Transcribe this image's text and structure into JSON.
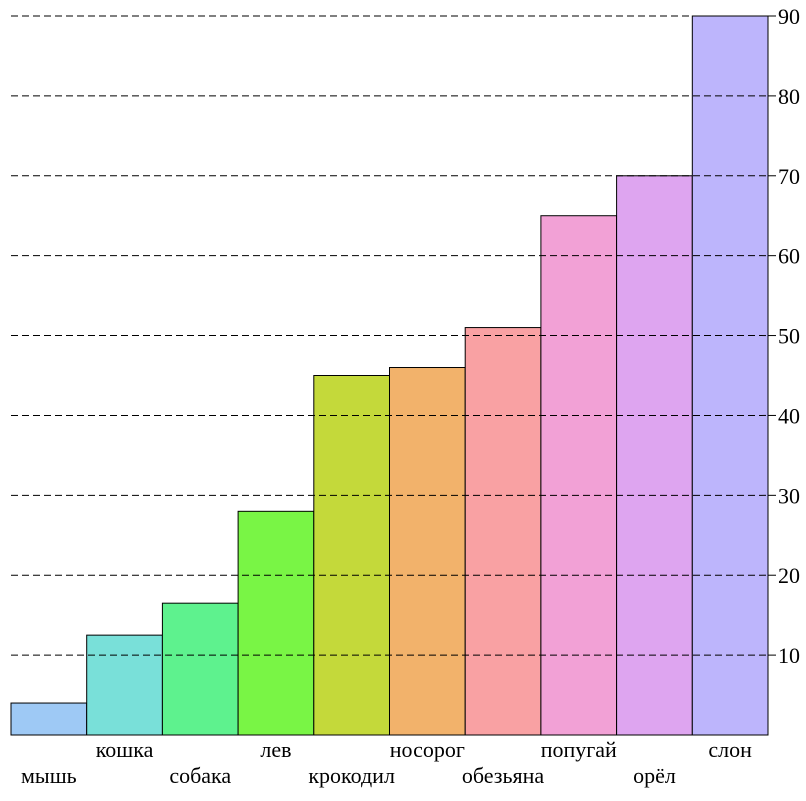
{
  "chart_data": {
    "type": "bar",
    "title": "",
    "xlabel": "",
    "ylabel": "",
    "categories": [
      "мышь",
      "кошка",
      "собака",
      "лев",
      "крокодил",
      "носорог",
      "обезьяна",
      "попугай",
      "орёл",
      "слон"
    ],
    "values": [
      4,
      12.5,
      16.5,
      28,
      45,
      46,
      51,
      65,
      70,
      90
    ],
    "colors": [
      "#9ec9f5",
      "#79e0d9",
      "#5ef28e",
      "#79f545",
      "#c4d93a",
      "#f2b26b",
      "#f9a1a3",
      "#f2a1d6",
      "#dea5f0",
      "#bdb5fc"
    ],
    "ylim": [
      0,
      90
    ],
    "y_ticks": [
      10,
      20,
      30,
      40,
      50,
      60,
      70,
      80,
      90
    ],
    "y_tick_labels": [
      "10",
      "20",
      "30",
      "40",
      "50",
      "60",
      "70",
      "80",
      "90"
    ],
    "y_axis_position": "right",
    "grid": "dashed horizontal lines",
    "legend": "none"
  }
}
